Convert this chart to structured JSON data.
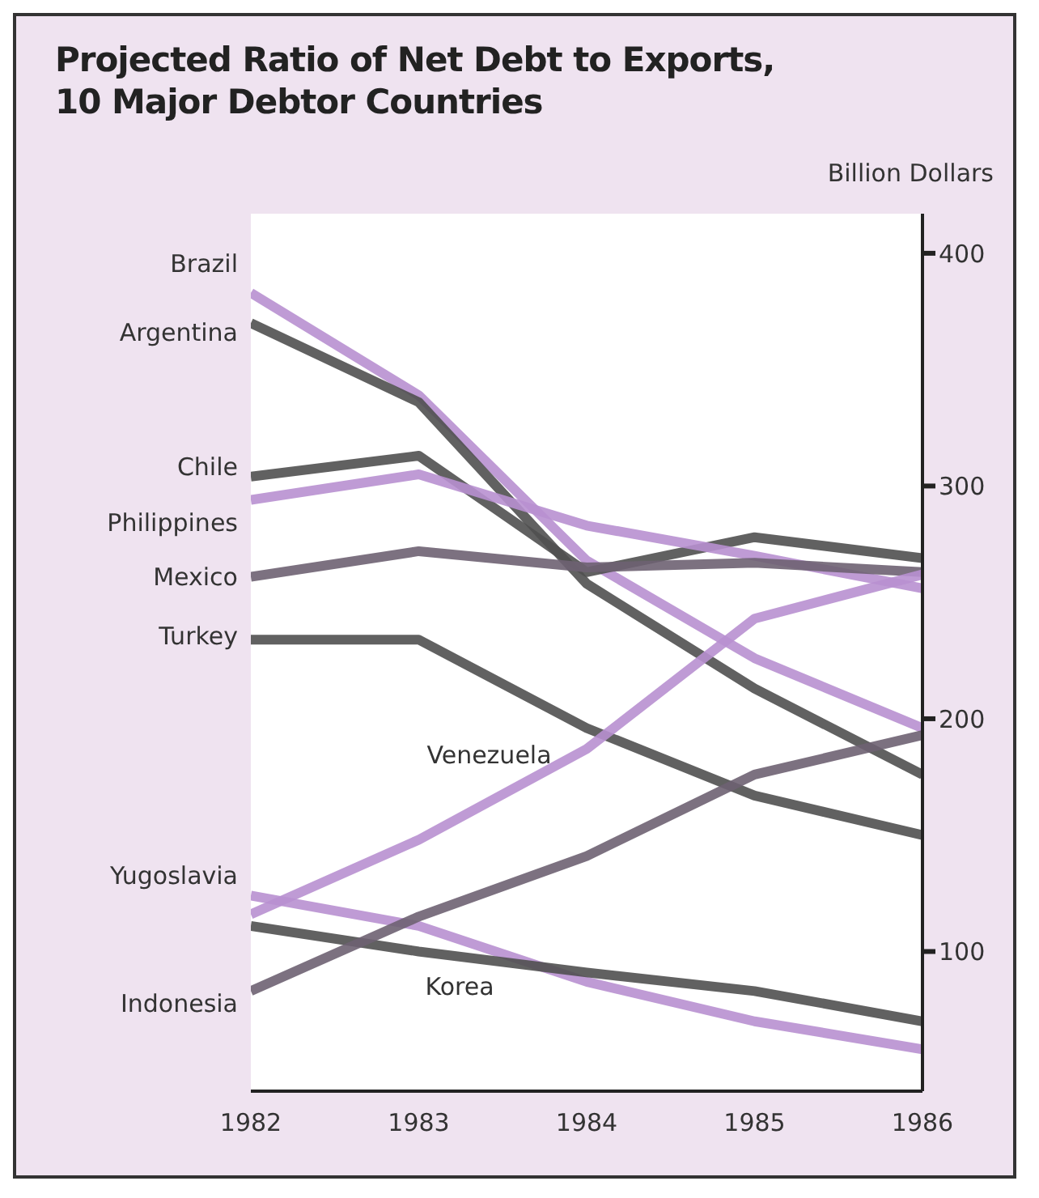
{
  "chart_data": {
    "type": "line",
    "title": "Projected Ratio of Net Debt to Exports,\n10 Major Debtor Countries",
    "ylabel": "Billion Dollars",
    "x": [
      1982,
      1983,
      1984,
      1985,
      1986
    ],
    "xlim": [
      1982,
      1986
    ],
    "xticks": [
      1982,
      1983,
      1984,
      1985,
      1986
    ],
    "ylim": [
      40,
      417
    ],
    "yticks": [
      100,
      200,
      300,
      400
    ],
    "grid": false,
    "marker": "none",
    "line_style": "solid",
    "series": [
      {
        "name": "Brazil",
        "color": "#b890d0",
        "values": [
          383,
          339,
          268,
          226,
          196
        ]
      },
      {
        "name": "Argentina",
        "color": "#505050",
        "values": [
          370,
          336,
          258,
          213,
          176
        ]
      },
      {
        "name": "Chile",
        "color": "#505050",
        "values": [
          304,
          313,
          263,
          278,
          269
        ]
      },
      {
        "name": "Philippines",
        "color": "#b890d0",
        "values": [
          294,
          305,
          283,
          270,
          256
        ]
      },
      {
        "name": "Mexico",
        "color": "#6e6272",
        "values": [
          261,
          272,
          265,
          267,
          263
        ]
      },
      {
        "name": "Turkey",
        "color": "#505050",
        "values": [
          234,
          234,
          196,
          167,
          150
        ]
      },
      {
        "name": "Venezuela",
        "color": "#b890d0",
        "values": [
          116,
          148,
          187,
          243,
          262
        ]
      },
      {
        "name": "Yugoslavia",
        "color": "#b890d0",
        "values": [
          124,
          111,
          87,
          70,
          58
        ]
      },
      {
        "name": "Korea",
        "color": "#505050",
        "values": [
          111,
          100,
          91,
          83,
          70
        ]
      },
      {
        "name": "Indonesia",
        "color": "#6e6272",
        "values": [
          83,
          115,
          141,
          176,
          193
        ]
      }
    ]
  }
}
